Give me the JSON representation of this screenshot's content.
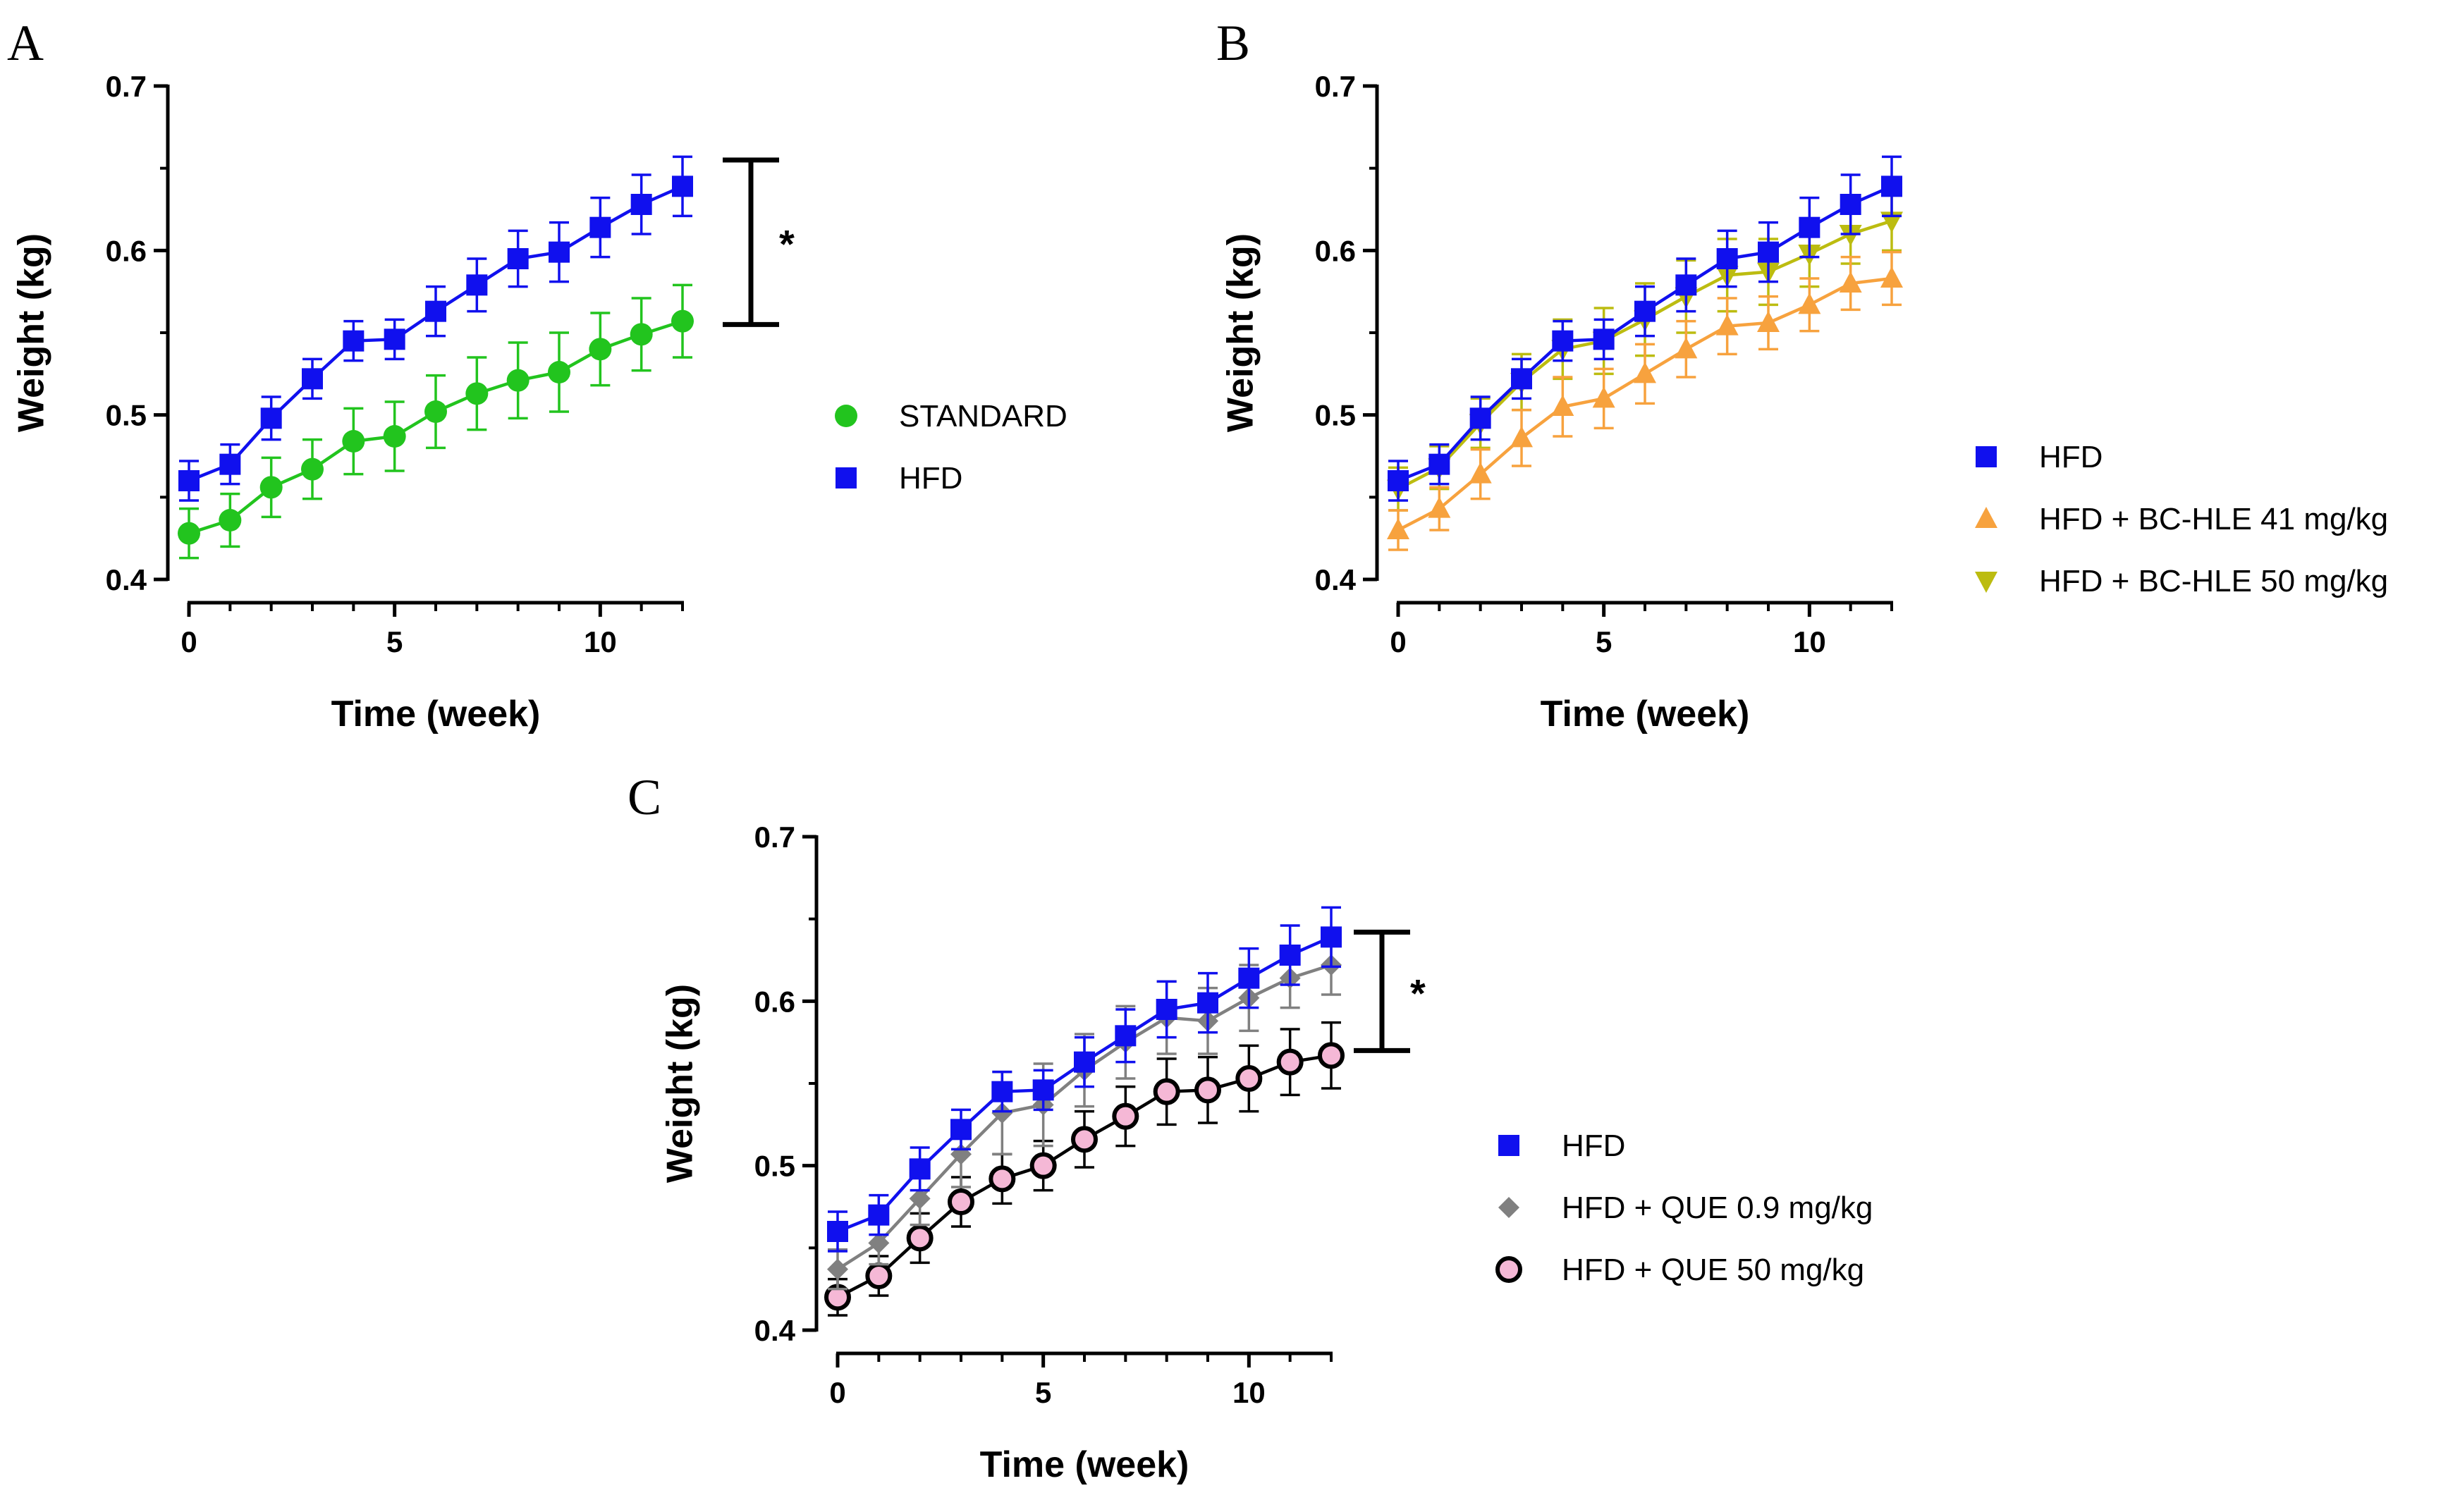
{
  "colors": {
    "STANDARD": "#22c41e",
    "HFD": "#1010ee",
    "BC41": "#f7a23e",
    "BC50": "#bcbc10",
    "QUE09": "#808080",
    "QUE50_fill": "#f5b8d6",
    "QUE50_edge": "#000000",
    "axis": "#000000"
  },
  "chart_data": [
    {
      "panel": "A",
      "type": "line",
      "xlabel": "Time (week)",
      "ylabel": "Weight (kg)",
      "xlim": [
        0,
        12
      ],
      "ylim": [
        0.4,
        0.7
      ],
      "xticks": [
        "0",
        "5",
        "10"
      ],
      "yticks": [
        "0.4",
        "0.5",
        "0.6",
        "0.7"
      ],
      "legend_position": "right",
      "significance": {
        "label": "*",
        "from": 0.555,
        "to": 0.655
      },
      "x": [
        0,
        1,
        2,
        3,
        4,
        5,
        6,
        7,
        8,
        9,
        10,
        11,
        12
      ],
      "series": [
        {
          "name": "STANDARD",
          "marker": "circle",
          "color_key": "STANDARD",
          "values": [
            0.428,
            0.436,
            0.456,
            0.467,
            0.484,
            0.487,
            0.502,
            0.513,
            0.521,
            0.526,
            0.54,
            0.549,
            0.557
          ],
          "errors": [
            0.015,
            0.016,
            0.018,
            0.018,
            0.02,
            0.021,
            0.022,
            0.022,
            0.023,
            0.024,
            0.022,
            0.022,
            0.022
          ]
        },
        {
          "name": "HFD",
          "marker": "square",
          "color_key": "HFD",
          "values": [
            0.46,
            0.47,
            0.498,
            0.522,
            0.545,
            0.546,
            0.563,
            0.579,
            0.595,
            0.599,
            0.614,
            0.628,
            0.639
          ],
          "errors": [
            0.012,
            0.012,
            0.013,
            0.012,
            0.012,
            0.012,
            0.015,
            0.016,
            0.017,
            0.018,
            0.018,
            0.018,
            0.018
          ]
        }
      ]
    },
    {
      "panel": "B",
      "type": "line",
      "xlabel": "Time (week)",
      "ylabel": "Weight (kg)",
      "xlim": [
        0,
        12
      ],
      "ylim": [
        0.4,
        0.7
      ],
      "xticks": [
        "0",
        "5",
        "10"
      ],
      "yticks": [
        "0.4",
        "0.5",
        "0.6",
        "0.7"
      ],
      "legend_position": "bottom-right",
      "x": [
        0,
        1,
        2,
        3,
        4,
        5,
        6,
        7,
        8,
        9,
        10,
        11,
        12
      ],
      "series": [
        {
          "name": "HFD",
          "marker": "square",
          "color_key": "HFD",
          "values": [
            0.46,
            0.47,
            0.498,
            0.522,
            0.545,
            0.546,
            0.563,
            0.579,
            0.595,
            0.599,
            0.614,
            0.628,
            0.639
          ],
          "errors": [
            0.012,
            0.012,
            0.013,
            0.012,
            0.012,
            0.012,
            0.015,
            0.016,
            0.017,
            0.018,
            0.018,
            0.018,
            0.018
          ]
        },
        {
          "name": "HFD + BC-HLE 41 mg/kg",
          "marker": "triangle-up",
          "color_key": "BC41",
          "values": [
            0.43,
            0.443,
            0.464,
            0.486,
            0.505,
            0.51,
            0.525,
            0.54,
            0.554,
            0.556,
            0.567,
            0.58,
            0.583
          ],
          "errors": [
            0.012,
            0.013,
            0.015,
            0.017,
            0.018,
            0.018,
            0.018,
            0.017,
            0.017,
            0.016,
            0.016,
            0.016,
            0.016
          ]
        },
        {
          "name": "HFD + BC-HLE 50 mg/kg",
          "marker": "triangle-down",
          "color_key": "BC50",
          "values": [
            0.455,
            0.468,
            0.495,
            0.52,
            0.54,
            0.545,
            0.558,
            0.572,
            0.585,
            0.587,
            0.598,
            0.61,
            0.618
          ],
          "errors": [
            0.013,
            0.013,
            0.015,
            0.017,
            0.018,
            0.02,
            0.022,
            0.022,
            0.022,
            0.02,
            0.02,
            0.018,
            0.018
          ]
        }
      ]
    },
    {
      "panel": "C",
      "type": "line",
      "xlabel": "Time (week)",
      "ylabel": "Weight (kg)",
      "xlim": [
        0,
        12
      ],
      "ylim": [
        0.4,
        0.7
      ],
      "xticks": [
        "0",
        "5",
        "10"
      ],
      "yticks": [
        "0.4",
        "0.5",
        "0.6",
        "0.7"
      ],
      "legend_position": "bottom-right",
      "significance": {
        "label": "*",
        "from": 0.57,
        "to": 0.642
      },
      "x": [
        0,
        1,
        2,
        3,
        4,
        5,
        6,
        7,
        8,
        9,
        10,
        11,
        12
      ],
      "series": [
        {
          "name": "HFD",
          "marker": "square",
          "color_key": "HFD",
          "values": [
            0.46,
            0.47,
            0.498,
            0.522,
            0.545,
            0.546,
            0.563,
            0.579,
            0.595,
            0.599,
            0.614,
            0.628,
            0.639
          ],
          "errors": [
            0.012,
            0.012,
            0.013,
            0.012,
            0.012,
            0.012,
            0.015,
            0.016,
            0.017,
            0.018,
            0.018,
            0.018,
            0.018
          ]
        },
        {
          "name": "HFD + QUE 0.9 mg/kg",
          "marker": "diamond",
          "color_key": "QUE09",
          "values": [
            0.437,
            0.453,
            0.48,
            0.507,
            0.532,
            0.537,
            0.558,
            0.575,
            0.59,
            0.588,
            0.602,
            0.614,
            0.622
          ],
          "errors": [
            0.012,
            0.013,
            0.016,
            0.02,
            0.025,
            0.025,
            0.022,
            0.022,
            0.022,
            0.02,
            0.02,
            0.018,
            0.018
          ]
        },
        {
          "name": "HFD + QUE 50 mg/kg",
          "marker": "circle-outline",
          "color_key": "QUE50_fill",
          "values": [
            0.42,
            0.433,
            0.456,
            0.478,
            0.492,
            0.5,
            0.516,
            0.53,
            0.545,
            0.546,
            0.553,
            0.563,
            0.567
          ],
          "errors": [
            0.011,
            0.012,
            0.015,
            0.015,
            0.015,
            0.015,
            0.017,
            0.018,
            0.02,
            0.02,
            0.02,
            0.02,
            0.02
          ]
        }
      ]
    }
  ]
}
